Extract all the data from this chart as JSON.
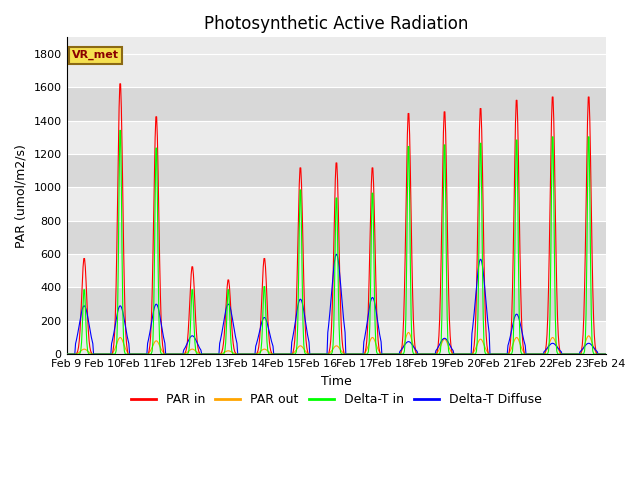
{
  "title": "Photosynthetic Active Radiation",
  "xlabel": "Time",
  "ylabel": "PAR (umol/m2/s)",
  "ylim": [
    0,
    1900
  ],
  "yticks": [
    0,
    200,
    400,
    600,
    800,
    1000,
    1200,
    1400,
    1600,
    1800
  ],
  "x_labels": [
    "Feb 9",
    "Feb 10",
    "Feb 11",
    "Feb 12",
    "Feb 13",
    "Feb 14",
    "Feb 15",
    "Feb 16",
    "Feb 17",
    "Feb 18",
    "Feb 19",
    "Feb 20",
    "Feb 21",
    "Feb 22",
    "Feb 23",
    "Feb 24"
  ],
  "legend_labels": [
    "PAR in",
    "PAR out",
    "Delta-T in",
    "Delta-T Diffuse"
  ],
  "colors": [
    "red",
    "orange",
    "#00ff00",
    "blue"
  ],
  "annotation_text": "VR_met",
  "bg_color_light": "#ebebeb",
  "bg_color_dark": "#d8d8d8",
  "title_fontsize": 12,
  "axis_fontsize": 9,
  "tick_fontsize": 8,
  "legend_fontsize": 9
}
